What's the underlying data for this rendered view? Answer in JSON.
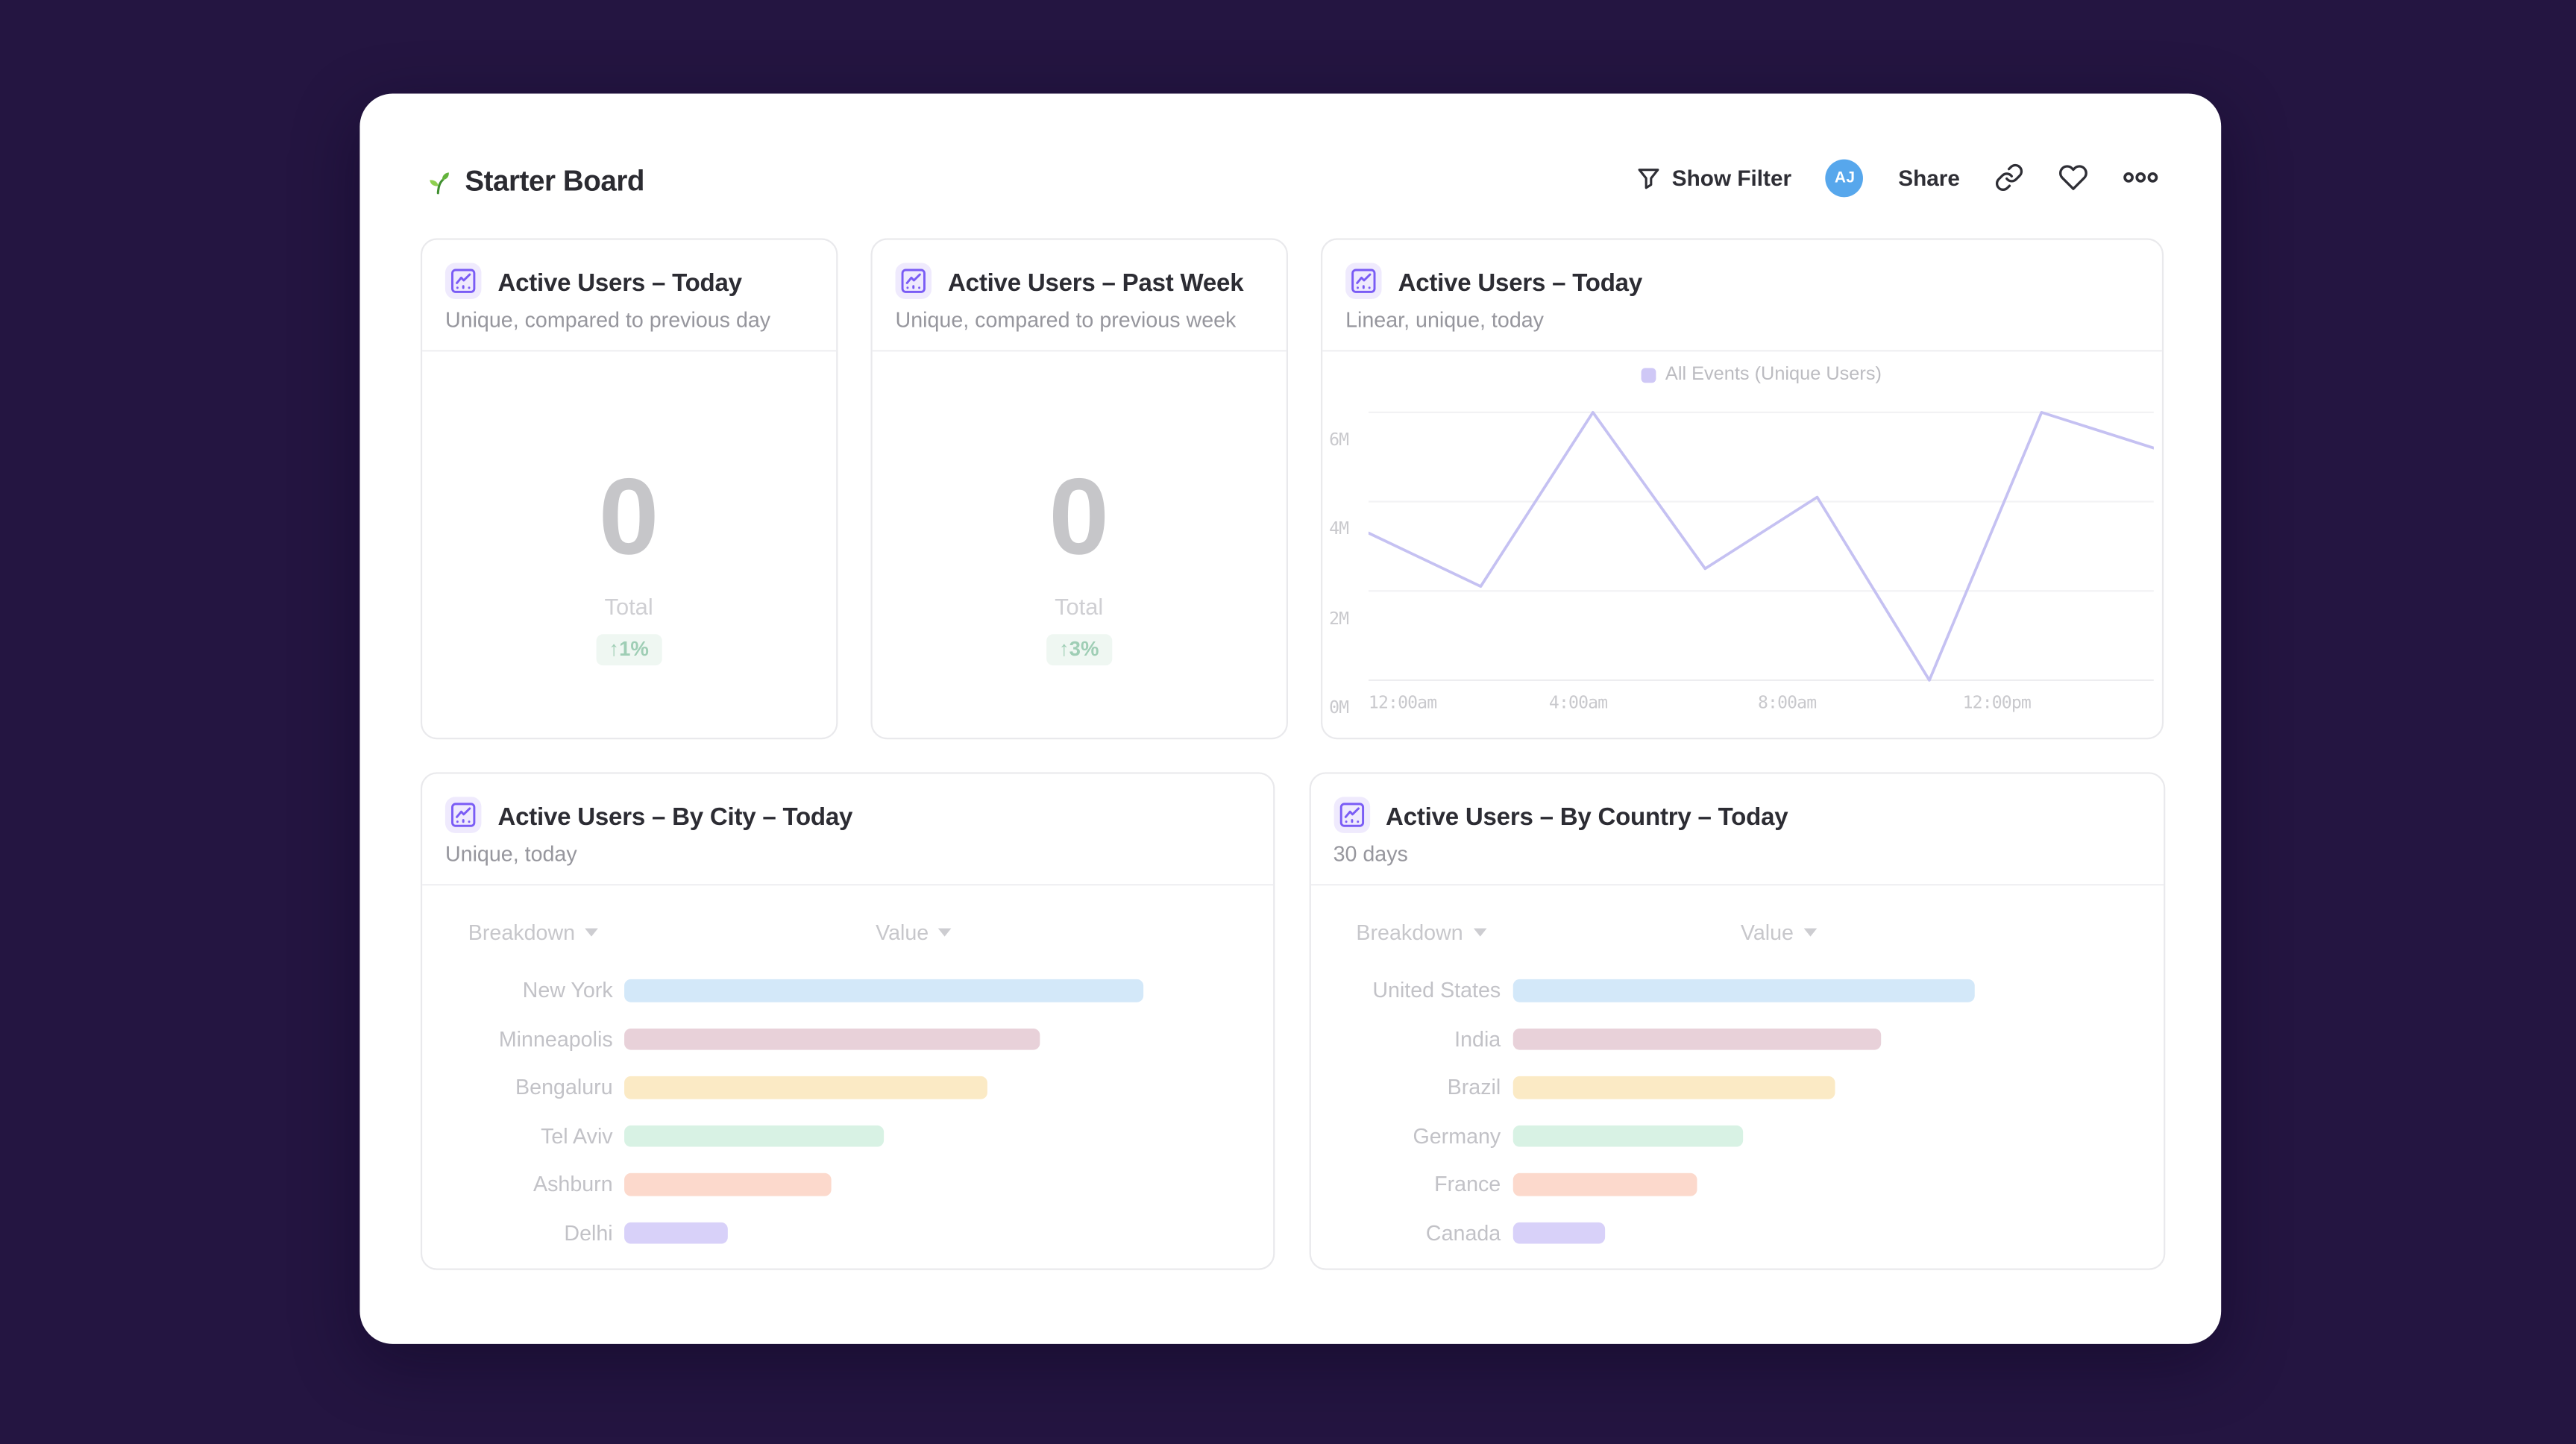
{
  "page": {
    "background_color": "#241541"
  },
  "board": {
    "title": "Starter Board",
    "toolbar": {
      "show_filter_label": "Show Filter",
      "avatar_initials": "AJ",
      "share_label": "Share",
      "icons": [
        "filter-icon",
        "copy-link-icon",
        "heart-icon",
        "more-options-icon"
      ],
      "avatar_color": "#57a7ec"
    }
  },
  "cards": {
    "active_today": {
      "title": "Active Users – Today",
      "subtitle": "Unique, compared to previous day",
      "total_value": "0",
      "total_label": "Total",
      "delta_badge": "↑1%",
      "delta_color": "#9fceb5"
    },
    "active_past_week": {
      "title": "Active Users – Past Week",
      "subtitle": "Unique, compared to previous week",
      "total_value": "0",
      "total_label": "Total",
      "delta_badge": "↑3%",
      "delta_color": "#9fceb5"
    },
    "active_today_linear": {
      "title": "Active Users – Today",
      "subtitle": "Linear, unique, today"
    },
    "by_city": {
      "title": "Active Users – By City – Today",
      "subtitle": "Unique, today",
      "col_breakdown": "Breakdown",
      "col_value": "Value"
    },
    "by_country": {
      "title": "Active Users – By Country – Today",
      "subtitle": "30 days",
      "col_breakdown": "Breakdown",
      "col_value": "Value"
    }
  },
  "chart_data": [
    {
      "type": "line",
      "title": "Active Users – Today",
      "series": [
        {
          "name": "All Events (Unique Users)",
          "values_millions": [
            3.3,
            2.1,
            6.0,
            2.5,
            4.1,
            0.0,
            6.0,
            5.2
          ]
        }
      ],
      "x_tick_labels": [
        "12:00am",
        "4:00am",
        "8:00am",
        "12:00pm"
      ],
      "x_tick_positions": [
        0,
        0.267,
        0.533,
        0.8
      ],
      "y_tick_labels": [
        "6M",
        "4M",
        "2M",
        "0M"
      ],
      "ylim_millions": [
        0,
        6
      ],
      "grid": true,
      "legend_position": "top-center",
      "line_color": "#c5c1f2"
    },
    {
      "type": "bar",
      "orientation": "horizontal",
      "title": "Active Users – By City – Today",
      "categories": [
        "New York",
        "Minneapolis",
        "Bengaluru",
        "Tel Aviv",
        "Ashburn",
        "Delhi"
      ],
      "values_pct_of_max": [
        100,
        80,
        70,
        50,
        40,
        20
      ],
      "colors": [
        "#d3e8f9",
        "#e8d1d9",
        "#fbeac5",
        "#d8f2e4",
        "#fcd9cc",
        "#d8d1f9"
      ]
    },
    {
      "type": "bar",
      "orientation": "horizontal",
      "title": "Active Users – By Country – Today",
      "categories": [
        "United States",
        "India",
        "Brazil",
        "Germany",
        "France",
        "Canada"
      ],
      "values_pct_of_max": [
        100,
        80,
        70,
        50,
        40,
        20
      ],
      "colors": [
        "#d3e8f9",
        "#e8d1d9",
        "#fbeac5",
        "#d8f2e4",
        "#fcd9cc",
        "#d8d1f9"
      ]
    }
  ]
}
